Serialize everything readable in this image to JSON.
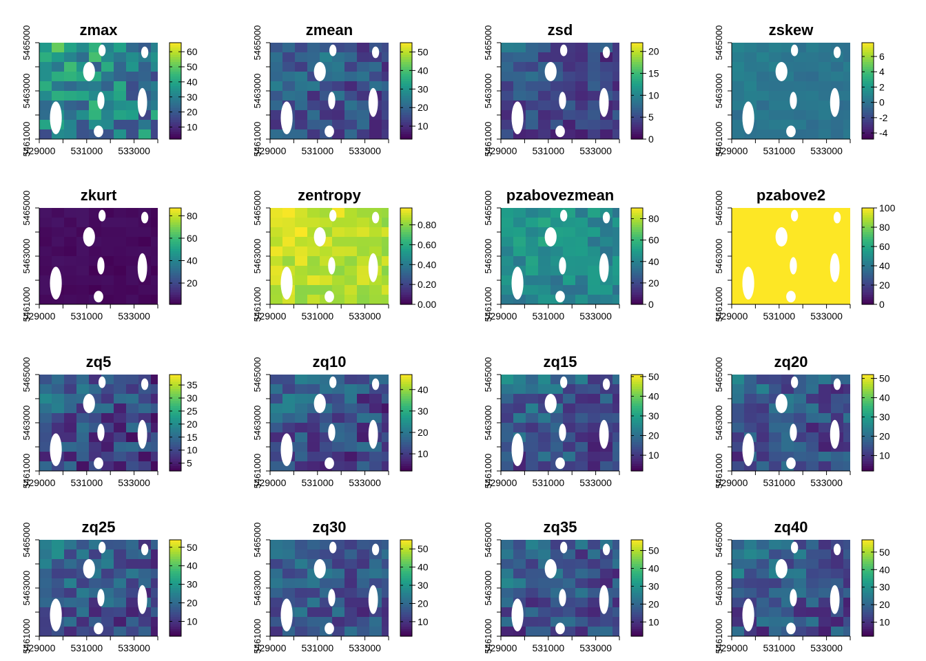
{
  "figure": {
    "colormap": "viridis",
    "viridis_stops": [
      "#440154",
      "#482878",
      "#3e4989",
      "#31688e",
      "#26828e",
      "#1f9e89",
      "#35b779",
      "#6ece58",
      "#b5de2b",
      "#fde725"
    ],
    "nodata_color": "#ffffff"
  },
  "chart_data": [
    {
      "type": "heatmap",
      "title": "zmax",
      "x_ticks": [
        "529000",
        "531000",
        "533000"
      ],
      "y_ticks": [
        "5461000",
        "5463000",
        "5465000"
      ],
      "xlim": [
        529000,
        534000
      ],
      "ylim": [
        5461000,
        5465000
      ],
      "colorbar_ticks": [
        "10",
        "20",
        "30",
        "40",
        "50",
        "60"
      ],
      "colorbar_values": [
        10,
        20,
        30,
        40,
        50,
        60
      ],
      "colorbar_range": [
        2,
        66
      ]
    },
    {
      "type": "heatmap",
      "title": "zmean",
      "x_ticks": [
        "529000",
        "531000",
        "533000"
      ],
      "y_ticks": [
        "5461000",
        "5463000",
        "5465000"
      ],
      "xlim": [
        529000,
        534000
      ],
      "ylim": [
        5461000,
        5465000
      ],
      "colorbar_ticks": [
        "10",
        "20",
        "30",
        "40",
        "50"
      ],
      "colorbar_values": [
        10,
        20,
        30,
        40,
        50
      ],
      "colorbar_range": [
        3,
        55
      ]
    },
    {
      "type": "heatmap",
      "title": "zsd",
      "x_ticks": [
        "529000",
        "531000",
        "533000"
      ],
      "y_ticks": [
        "5461000",
        "5463000",
        "5465000"
      ],
      "xlim": [
        529000,
        534000
      ],
      "ylim": [
        5461000,
        5465000
      ],
      "colorbar_ticks": [
        "0",
        "5",
        "10",
        "15",
        "20"
      ],
      "colorbar_values": [
        0,
        5,
        10,
        15,
        20
      ],
      "colorbar_range": [
        0,
        22
      ]
    },
    {
      "type": "heatmap",
      "title": "zskew",
      "x_ticks": [
        "529000",
        "531000",
        "533000"
      ],
      "y_ticks": [
        "5461000",
        "5463000",
        "5465000"
      ],
      "xlim": [
        529000,
        534000
      ],
      "ylim": [
        5461000,
        5465000
      ],
      "colorbar_ticks": [
        "-4",
        "-2",
        "0",
        "2",
        "4",
        "6"
      ],
      "colorbar_values": [
        -4,
        -2,
        0,
        2,
        4,
        6
      ],
      "colorbar_range": [
        -4.8,
        7.8
      ]
    },
    {
      "type": "heatmap",
      "title": "zkurt",
      "x_ticks": [
        "529000",
        "531000",
        "533000"
      ],
      "y_ticks": [
        "5461000",
        "5463000",
        "5465000"
      ],
      "xlim": [
        529000,
        534000
      ],
      "ylim": [
        5461000,
        5465000
      ],
      "colorbar_ticks": [
        "20",
        "40",
        "60",
        "80"
      ],
      "colorbar_values": [
        20,
        40,
        60,
        80
      ],
      "colorbar_range": [
        1,
        87
      ]
    },
    {
      "type": "heatmap",
      "title": "zentropy",
      "x_ticks": [
        "529000",
        "531000",
        "533000"
      ],
      "y_ticks": [
        "5461000",
        "5463000",
        "5465000"
      ],
      "xlim": [
        529000,
        534000
      ],
      "ylim": [
        5461000,
        5465000
      ],
      "colorbar_ticks": [
        "0.00",
        "0.20",
        "0.40",
        "0.60",
        "0.80"
      ],
      "colorbar_values": [
        0,
        0.2,
        0.4,
        0.6,
        0.8
      ],
      "colorbar_range": [
        0,
        0.97
      ]
    },
    {
      "type": "heatmap",
      "title": "pzabovezmean",
      "x_ticks": [
        "529000",
        "531000",
        "533000"
      ],
      "y_ticks": [
        "5461000",
        "5463000",
        "5465000"
      ],
      "xlim": [
        529000,
        534000
      ],
      "ylim": [
        5461000,
        5465000
      ],
      "colorbar_ticks": [
        "0",
        "20",
        "40",
        "60",
        "80"
      ],
      "colorbar_values": [
        0,
        20,
        40,
        60,
        80
      ],
      "colorbar_range": [
        0,
        90
      ]
    },
    {
      "type": "heatmap",
      "title": "pzabove2",
      "x_ticks": [
        "529000",
        "531000",
        "533000"
      ],
      "y_ticks": [
        "5461000",
        "5463000",
        "5465000"
      ],
      "xlim": [
        529000,
        534000
      ],
      "ylim": [
        5461000,
        5465000
      ],
      "colorbar_ticks": [
        "0",
        "20",
        "40",
        "60",
        "80",
        "100"
      ],
      "colorbar_values": [
        0,
        20,
        40,
        60,
        80,
        100
      ],
      "colorbar_range": [
        0,
        100
      ]
    },
    {
      "type": "heatmap",
      "title": "zq5",
      "x_ticks": [
        "529000",
        "531000",
        "533000"
      ],
      "y_ticks": [
        "5461000",
        "5463000",
        "5465000"
      ],
      "xlim": [
        529000,
        534000
      ],
      "ylim": [
        5461000,
        5465000
      ],
      "colorbar_ticks": [
        "5",
        "10",
        "15",
        "20",
        "25",
        "30",
        "35"
      ],
      "colorbar_values": [
        5,
        10,
        15,
        20,
        25,
        30,
        35
      ],
      "colorbar_range": [
        2,
        39
      ]
    },
    {
      "type": "heatmap",
      "title": "zq10",
      "x_ticks": [
        "529000",
        "531000",
        "533000"
      ],
      "y_ticks": [
        "5461000",
        "5463000",
        "5465000"
      ],
      "xlim": [
        529000,
        534000
      ],
      "ylim": [
        5461000,
        5465000
      ],
      "colorbar_ticks": [
        "10",
        "20",
        "30",
        "40"
      ],
      "colorbar_values": [
        10,
        20,
        30,
        40
      ],
      "colorbar_range": [
        2,
        47
      ]
    },
    {
      "type": "heatmap",
      "title": "zq15",
      "x_ticks": [
        "529000",
        "531000",
        "533000"
      ],
      "y_ticks": [
        "5461000",
        "5463000",
        "5465000"
      ],
      "xlim": [
        529000,
        534000
      ],
      "ylim": [
        5461000,
        5465000
      ],
      "colorbar_ticks": [
        "10",
        "20",
        "30",
        "40",
        "50"
      ],
      "colorbar_values": [
        10,
        20,
        30,
        40,
        50
      ],
      "colorbar_range": [
        2,
        51
      ]
    },
    {
      "type": "heatmap",
      "title": "zq20",
      "x_ticks": [
        "529000",
        "531000",
        "533000"
      ],
      "y_ticks": [
        "5461000",
        "5463000",
        "5465000"
      ],
      "xlim": [
        529000,
        534000
      ],
      "ylim": [
        5461000,
        5465000
      ],
      "colorbar_ticks": [
        "10",
        "20",
        "30",
        "40",
        "50"
      ],
      "colorbar_values": [
        10,
        20,
        30,
        40,
        50
      ],
      "colorbar_range": [
        2,
        52
      ]
    },
    {
      "type": "heatmap",
      "title": "zq25",
      "x_ticks": [
        "529000",
        "531000",
        "533000"
      ],
      "y_ticks": [
        "5461000",
        "5463000",
        "5465000"
      ],
      "xlim": [
        529000,
        534000
      ],
      "ylim": [
        5461000,
        5465000
      ],
      "colorbar_ticks": [
        "10",
        "20",
        "30",
        "40",
        "50"
      ],
      "colorbar_values": [
        10,
        20,
        30,
        40,
        50
      ],
      "colorbar_range": [
        2,
        54
      ]
    },
    {
      "type": "heatmap",
      "title": "zq30",
      "x_ticks": [
        "529000",
        "531000",
        "533000"
      ],
      "y_ticks": [
        "5461000",
        "5463000",
        "5465000"
      ],
      "xlim": [
        529000,
        534000
      ],
      "ylim": [
        5461000,
        5465000
      ],
      "colorbar_ticks": [
        "10",
        "20",
        "30",
        "40",
        "50"
      ],
      "colorbar_values": [
        10,
        20,
        30,
        40,
        50
      ],
      "colorbar_range": [
        2,
        55
      ]
    },
    {
      "type": "heatmap",
      "title": "zq35",
      "x_ticks": [
        "529000",
        "531000",
        "533000"
      ],
      "y_ticks": [
        "5461000",
        "5463000",
        "5465000"
      ],
      "xlim": [
        529000,
        534000
      ],
      "ylim": [
        5461000,
        5465000
      ],
      "colorbar_ticks": [
        "10",
        "20",
        "30",
        "40",
        "50"
      ],
      "colorbar_values": [
        10,
        20,
        30,
        40,
        50
      ],
      "colorbar_range": [
        2,
        56
      ]
    },
    {
      "type": "heatmap",
      "title": "zq40",
      "x_ticks": [
        "529000",
        "531000",
        "533000"
      ],
      "y_ticks": [
        "5461000",
        "5463000",
        "5465000"
      ],
      "xlim": [
        529000,
        534000
      ],
      "ylim": [
        5461000,
        5465000
      ],
      "colorbar_ticks": [
        "10",
        "20",
        "30",
        "40",
        "50"
      ],
      "colorbar_values": [
        10,
        20,
        30,
        40,
        50
      ],
      "colorbar_range": [
        2,
        57
      ]
    }
  ]
}
